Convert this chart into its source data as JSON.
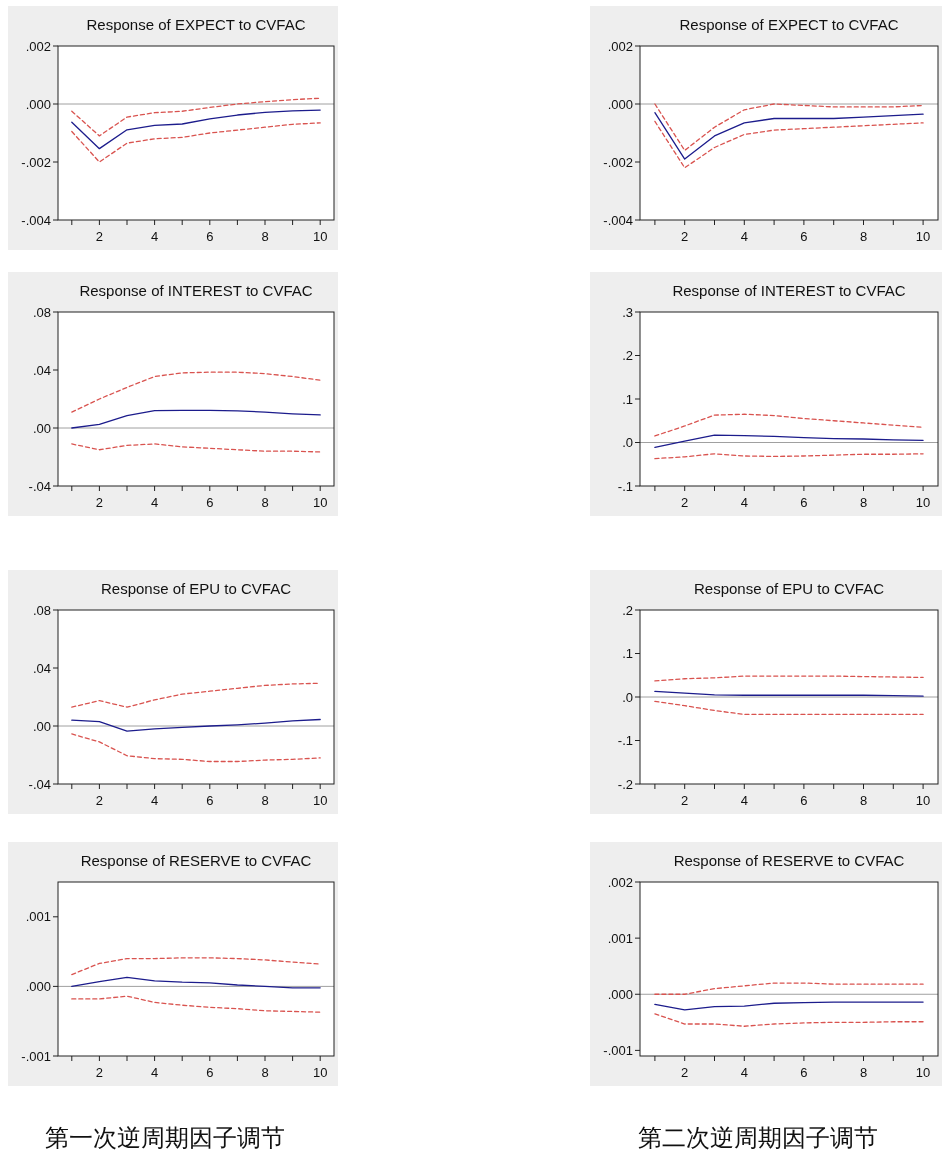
{
  "chart_data": [
    {
      "type": "line",
      "title": "Response of EXPECT to CVFAC",
      "x": [
        1,
        2,
        3,
        4,
        5,
        6,
        7,
        8,
        9,
        10
      ],
      "xlim": [
        0.5,
        10.5
      ],
      "xticks": [
        {
          "value": 1,
          "label": null
        },
        2,
        {
          "value": 3,
          "label": null
        },
        4,
        {
          "value": 5,
          "label": null
        },
        6,
        {
          "value": 7,
          "label": null
        },
        8,
        {
          "value": 9,
          "label": null
        },
        10
      ],
      "ylim": [
        -0.004,
        0.002
      ],
      "yticks": [
        {
          "value": -0.004,
          "label": "-.004"
        },
        {
          "value": -0.002,
          "label": "-.002"
        },
        {
          "value": 0,
          "label": ".000"
        },
        {
          "value": 0.002,
          "label": ".002"
        }
      ],
      "line_style": "solid",
      "ref_lines": [
        {
          "axis": "y",
          "value": 0,
          "color": "#a0a0a0"
        }
      ],
      "series": [
        {
          "color": "#1c1c8c",
          "values": [
            -0.00063,
            -0.00154,
            -0.00089,
            -0.00074,
            -0.00069,
            -0.00051,
            -0.00038,
            -0.00029,
            -0.00024,
            -0.00021
          ]
        },
        {
          "color": "#d9534f",
          "line_style": "dashed",
          "values": [
            -0.00025,
            -0.0011,
            -0.00045,
            -0.0003,
            -0.00025,
            -0.00012,
            0.0,
            8e-05,
            0.00015,
            0.0002
          ]
        },
        {
          "color": "#d9534f",
          "line_style": "dashed",
          "values": [
            -0.00095,
            -0.002,
            -0.00135,
            -0.0012,
            -0.00115,
            -0.001,
            -0.0009,
            -0.0008,
            -0.0007,
            -0.00065
          ]
        }
      ]
    },
    {
      "type": "line",
      "title": "Response of EXPECT to CVFAC",
      "x": [
        1,
        2,
        3,
        4,
        5,
        6,
        7,
        8,
        9,
        10
      ],
      "xlim": [
        0.5,
        10.5
      ],
      "xticks": [
        {
          "value": 1,
          "label": null
        },
        2,
        {
          "value": 3,
          "label": null
        },
        4,
        {
          "value": 5,
          "label": null
        },
        6,
        {
          "value": 7,
          "label": null
        },
        8,
        {
          "value": 9,
          "label": null
        },
        10
      ],
      "ylim": [
        -0.004,
        0.002
      ],
      "yticks": [
        {
          "value": -0.004,
          "label": "-.004"
        },
        {
          "value": -0.002,
          "label": "-.002"
        },
        {
          "value": 0,
          "label": ".000"
        },
        {
          "value": 0.002,
          "label": ".002"
        }
      ],
      "line_style": "solid",
      "ref_lines": [
        {
          "axis": "y",
          "value": 0,
          "color": "#a0a0a0"
        }
      ],
      "series": [
        {
          "color": "#1c1c8c",
          "values": [
            -0.0003,
            -0.0019,
            -0.0011,
            -0.00065,
            -0.0005,
            -0.0005,
            -0.0005,
            -0.00045,
            -0.0004,
            -0.00035
          ]
        },
        {
          "color": "#d9534f",
          "line_style": "dashed",
          "values": [
            0.0,
            -0.0016,
            -0.0008,
            -0.0002,
            0.0,
            -5e-05,
            -0.0001,
            -0.0001,
            -0.0001,
            -5e-05
          ]
        },
        {
          "color": "#d9534f",
          "line_style": "dashed",
          "values": [
            -0.0006,
            -0.0022,
            -0.0015,
            -0.00105,
            -0.0009,
            -0.00085,
            -0.0008,
            -0.00075,
            -0.0007,
            -0.00065
          ]
        }
      ]
    },
    {
      "type": "line",
      "title": "Response of INTEREST to CVFAC",
      "x": [
        1,
        2,
        3,
        4,
        5,
        6,
        7,
        8,
        9,
        10
      ],
      "xlim": [
        0.5,
        10.5
      ],
      "xticks": [
        {
          "value": 1,
          "label": null
        },
        2,
        {
          "value": 3,
          "label": null
        },
        4,
        {
          "value": 5,
          "label": null
        },
        6,
        {
          "value": 7,
          "label": null
        },
        8,
        {
          "value": 9,
          "label": null
        },
        10
      ],
      "ylim": [
        -0.04,
        0.08
      ],
      "yticks": [
        {
          "value": -0.04,
          "label": "-.04"
        },
        {
          "value": 0,
          "label": ".00"
        },
        {
          "value": 0.04,
          "label": ".04"
        },
        {
          "value": 0.08,
          "label": ".08"
        }
      ],
      "line_style": "solid",
      "ref_lines": [
        {
          "axis": "y",
          "value": 0,
          "color": "#a0a0a0"
        }
      ],
      "series": [
        {
          "color": "#1c1c8c",
          "values": [
            0.0,
            0.0025,
            0.0085,
            0.012,
            0.0122,
            0.0122,
            0.0118,
            0.011,
            0.0098,
            0.009
          ]
        },
        {
          "color": "#d9534f",
          "line_style": "dashed",
          "values": [
            0.011,
            0.02,
            0.028,
            0.0355,
            0.038,
            0.0385,
            0.0385,
            0.0375,
            0.0355,
            0.033
          ]
        },
        {
          "color": "#d9534f",
          "line_style": "dashed",
          "values": [
            -0.011,
            -0.015,
            -0.012,
            -0.011,
            -0.013,
            -0.014,
            -0.015,
            -0.016,
            -0.016,
            -0.0165
          ]
        }
      ]
    },
    {
      "type": "line",
      "title": "Response of INTEREST to CVFAC",
      "x": [
        1,
        2,
        3,
        4,
        5,
        6,
        7,
        8,
        9,
        10
      ],
      "xlim": [
        0.5,
        10.5
      ],
      "xticks": [
        {
          "value": 1,
          "label": null
        },
        2,
        {
          "value": 3,
          "label": null
        },
        4,
        {
          "value": 5,
          "label": null
        },
        6,
        {
          "value": 7,
          "label": null
        },
        8,
        {
          "value": 9,
          "label": null
        },
        10
      ],
      "ylim": [
        -0.1,
        0.3
      ],
      "yticks": [
        {
          "value": -0.1,
          "label": "-.1"
        },
        {
          "value": 0,
          "label": ".0"
        },
        {
          "value": 0.1,
          "label": ".1"
        },
        {
          "value": 0.2,
          "label": ".2"
        },
        {
          "value": 0.3,
          "label": ".3"
        }
      ],
      "line_style": "solid",
      "ref_lines": [
        {
          "axis": "y",
          "value": 0,
          "color": "#a0a0a0"
        }
      ],
      "series": [
        {
          "color": "#1c1c8c",
          "values": [
            -0.011,
            0.003,
            0.017,
            0.016,
            0.014,
            0.011,
            0.009,
            0.008,
            0.006,
            0.005
          ]
        },
        {
          "color": "#d9534f",
          "line_style": "dashed",
          "values": [
            0.015,
            0.038,
            0.063,
            0.065,
            0.062,
            0.055,
            0.05,
            0.045,
            0.04,
            0.035
          ]
        },
        {
          "color": "#d9534f",
          "line_style": "dashed",
          "values": [
            -0.037,
            -0.033,
            -0.026,
            -0.031,
            -0.032,
            -0.031,
            -0.029,
            -0.027,
            -0.027,
            -0.026
          ]
        }
      ]
    },
    {
      "type": "line",
      "title": "Response of EPU to CVFAC",
      "x": [
        1,
        2,
        3,
        4,
        5,
        6,
        7,
        8,
        9,
        10
      ],
      "xlim": [
        0.5,
        10.5
      ],
      "xticks": [
        {
          "value": 1,
          "label": null
        },
        2,
        {
          "value": 3,
          "label": null
        },
        4,
        {
          "value": 5,
          "label": null
        },
        6,
        {
          "value": 7,
          "label": null
        },
        8,
        {
          "value": 9,
          "label": null
        },
        10
      ],
      "ylim": [
        -0.04,
        0.08
      ],
      "yticks": [
        {
          "value": -0.04,
          "label": "-.04"
        },
        {
          "value": 0,
          "label": ".00"
        },
        {
          "value": 0.04,
          "label": ".04"
        },
        {
          "value": 0.08,
          "label": ".08"
        }
      ],
      "line_style": "solid",
      "ref_lines": [
        {
          "axis": "y",
          "value": 0,
          "color": "#a0a0a0"
        }
      ],
      "series": [
        {
          "color": "#1c1c8c",
          "values": [
            0.004,
            0.003,
            -0.0035,
            -0.002,
            -0.001,
            0.0,
            0.0008,
            0.002,
            0.0035,
            0.0045
          ]
        },
        {
          "color": "#d9534f",
          "line_style": "dashed",
          "values": [
            0.013,
            0.0175,
            0.013,
            0.018,
            0.022,
            0.024,
            0.026,
            0.028,
            0.029,
            0.0295
          ]
        },
        {
          "color": "#d9534f",
          "line_style": "dashed",
          "values": [
            -0.0055,
            -0.011,
            -0.0205,
            -0.0225,
            -0.023,
            -0.0245,
            -0.0245,
            -0.0235,
            -0.023,
            -0.022
          ]
        }
      ]
    },
    {
      "type": "line",
      "title": "Response of EPU to CVFAC",
      "x": [
        1,
        2,
        3,
        4,
        5,
        6,
        7,
        8,
        9,
        10
      ],
      "xlim": [
        0.5,
        10.5
      ],
      "xticks": [
        {
          "value": 1,
          "label": null
        },
        2,
        {
          "value": 3,
          "label": null
        },
        4,
        {
          "value": 5,
          "label": null
        },
        6,
        {
          "value": 7,
          "label": null
        },
        8,
        {
          "value": 9,
          "label": null
        },
        10
      ],
      "ylim": [
        -0.2,
        0.2
      ],
      "yticks": [
        {
          "value": -0.2,
          "label": "-.2"
        },
        {
          "value": -0.1,
          "label": "-.1"
        },
        {
          "value": 0,
          "label": ".0"
        },
        {
          "value": 0.1,
          "label": ".1"
        },
        {
          "value": 0.2,
          "label": ".2"
        }
      ],
      "line_style": "solid",
      "ref_lines": [
        {
          "axis": "y",
          "value": 0,
          "color": "#a0a0a0"
        }
      ],
      "series": [
        {
          "color": "#1c1c8c",
          "values": [
            0.013,
            0.009,
            0.005,
            0.004,
            0.004,
            0.004,
            0.004,
            0.004,
            0.003,
            0.002
          ]
        },
        {
          "color": "#d9534f",
          "line_style": "dashed",
          "values": [
            0.037,
            0.042,
            0.044,
            0.048,
            0.048,
            0.048,
            0.048,
            0.047,
            0.046,
            0.045
          ]
        },
        {
          "color": "#d9534f",
          "line_style": "dashed",
          "values": [
            -0.01,
            -0.02,
            -0.031,
            -0.04,
            -0.04,
            -0.04,
            -0.04,
            -0.04,
            -0.04,
            -0.04
          ]
        }
      ]
    },
    {
      "type": "line",
      "title": "Response of RESERVE to CVFAC",
      "x": [
        1,
        2,
        3,
        4,
        5,
        6,
        7,
        8,
        9,
        10
      ],
      "xlim": [
        0.5,
        10.5
      ],
      "xticks": [
        {
          "value": 1,
          "label": null
        },
        2,
        {
          "value": 3,
          "label": null
        },
        4,
        {
          "value": 5,
          "label": null
        },
        6,
        {
          "value": 7,
          "label": null
        },
        8,
        {
          "value": 9,
          "label": null
        },
        10
      ],
      "ylim": [
        -0.001,
        0.0015
      ],
      "yticks": [
        {
          "value": -0.001,
          "label": "-.001"
        },
        {
          "value": 0,
          "label": ".000"
        },
        {
          "value": 0.001,
          "label": ".001"
        }
      ],
      "line_style": "solid",
      "ref_lines": [
        {
          "axis": "y",
          "value": 0,
          "color": "#a0a0a0"
        }
      ],
      "annotations": [
        "第一次逆周期因子调节"
      ],
      "series": [
        {
          "color": "#1c1c8c",
          "values": [
            0.0,
            7e-05,
            0.00013,
            8e-05,
            6e-05,
            5e-05,
            2e-05,
            0.0,
            -2e-05,
            -2e-05
          ]
        },
        {
          "color": "#d9534f",
          "line_style": "dashed",
          "values": [
            0.00017,
            0.00033,
            0.0004,
            0.0004,
            0.00041,
            0.00041,
            0.0004,
            0.00038,
            0.00035,
            0.00032
          ]
        },
        {
          "color": "#d9534f",
          "line_style": "dashed",
          "values": [
            -0.00018,
            -0.00018,
            -0.00014,
            -0.00023,
            -0.00027,
            -0.0003,
            -0.00032,
            -0.00035,
            -0.00036,
            -0.00037
          ]
        }
      ]
    },
    {
      "type": "line",
      "title": "Response of RESERVE to CVFAC",
      "x": [
        1,
        2,
        3,
        4,
        5,
        6,
        7,
        8,
        9,
        10
      ],
      "xlim": [
        0.5,
        10.5
      ],
      "xticks": [
        {
          "value": 1,
          "label": null
        },
        2,
        {
          "value": 3,
          "label": null
        },
        4,
        {
          "value": 5,
          "label": null
        },
        6,
        {
          "value": 7,
          "label": null
        },
        8,
        {
          "value": 9,
          "label": null
        },
        10
      ],
      "ylim": [
        -0.0011,
        0.002
      ],
      "yticks": [
        {
          "value": -0.001,
          "label": "-.001"
        },
        {
          "value": 0,
          "label": ".000"
        },
        {
          "value": 0.001,
          "label": ".001"
        },
        {
          "value": 0.002,
          "label": ".002"
        }
      ],
      "line_style": "solid",
      "ref_lines": [
        {
          "axis": "y",
          "value": 0,
          "color": "#a0a0a0"
        }
      ],
      "annotations": [
        "第二次逆周期因子调节"
      ],
      "series": [
        {
          "color": "#1c1c8c",
          "values": [
            -0.00018,
            -0.00028,
            -0.00022,
            -0.00021,
            -0.00016,
            -0.00015,
            -0.00014,
            -0.00014,
            -0.00014,
            -0.00014
          ]
        },
        {
          "color": "#d9534f",
          "line_style": "dashed",
          "values": [
            0.0,
            0.0,
            0.0001,
            0.00015,
            0.0002,
            0.0002,
            0.00018,
            0.00018,
            0.00018,
            0.00018
          ]
        },
        {
          "color": "#d9534f",
          "line_style": "dashed",
          "values": [
            -0.00035,
            -0.00053,
            -0.00053,
            -0.00057,
            -0.00053,
            -0.00051,
            -0.0005,
            -0.0005,
            -0.00049,
            -0.00049
          ]
        }
      ]
    }
  ]
}
